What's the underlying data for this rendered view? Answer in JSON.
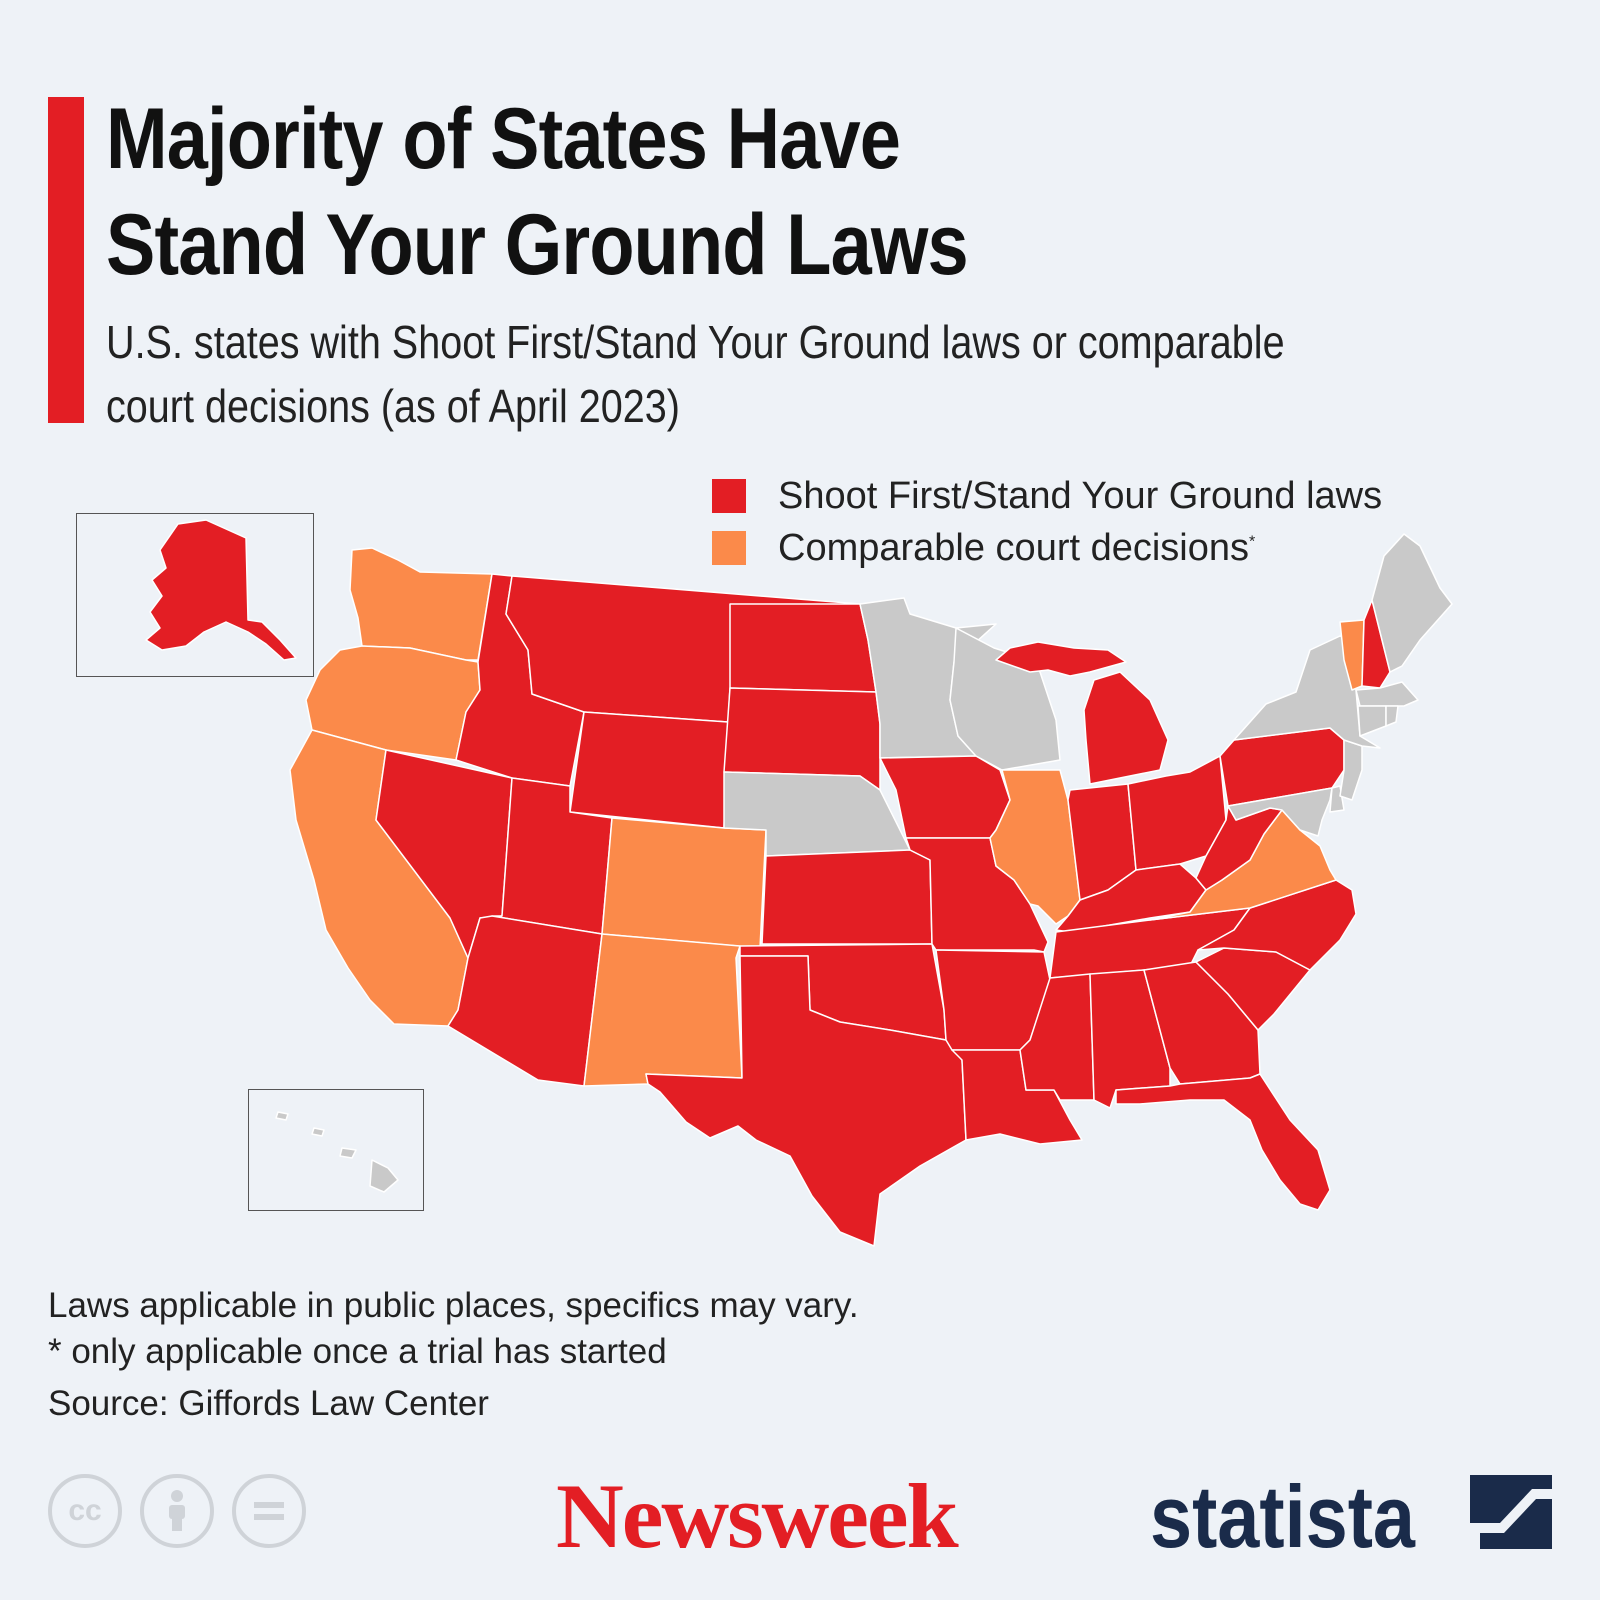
{
  "title_line1": "Majority of States Have",
  "title_line2": "Stand Your Ground Laws",
  "subtitle_line1": "U.S. states with Shoot First/Stand Your Ground laws or comparable",
  "subtitle_line2": "court decisions (as of April 2023)",
  "legend": {
    "items": [
      {
        "label": "Shoot First/Stand Your Ground laws",
        "color": "#e31e24"
      },
      {
        "label": "Comparable court decisions",
        "marker": "*",
        "color": "#fb8a4a"
      }
    ]
  },
  "colors": {
    "law": "#e31e24",
    "court": "#fb8a4a",
    "none": "#c9c9c9",
    "accent": "#e31e24",
    "background": "#eef2f7"
  },
  "map_data": {
    "law_states": [
      "AK",
      "AZ",
      "NV",
      "UT",
      "ID",
      "MT",
      "WY",
      "ND",
      "SD",
      "KS",
      "OK",
      "TX",
      "MO",
      "IA",
      "AR",
      "LA",
      "MS",
      "AL",
      "GA",
      "FL",
      "SC",
      "NC",
      "TN",
      "KY",
      "IN",
      "OH",
      "MI",
      "WV",
      "PA",
      "NH"
    ],
    "court_states": [
      "WA",
      "OR",
      "CA",
      "CO",
      "NM",
      "IL",
      "VA",
      "VT"
    ],
    "no_law_states": [
      "MN",
      "WI",
      "NE",
      "HI",
      "NY",
      "ME",
      "MA",
      "CT",
      "RI",
      "NJ",
      "DE",
      "MD",
      "DC"
    ]
  },
  "footnotes": {
    "note1": "Laws applicable in public places, specifics may vary.",
    "note2": "* only applicable once a trial has started",
    "source": "Source: Giffords Law Center"
  },
  "branding": {
    "cc_icons": [
      "cc-icon",
      "by-attribution-icon",
      "no-derivatives-icon"
    ],
    "newsweek": "Newsweek",
    "statista": "statista"
  }
}
